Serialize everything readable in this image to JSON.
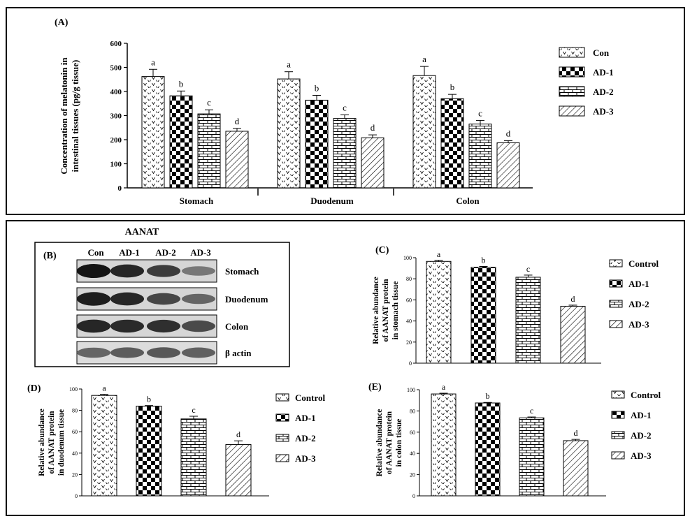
{
  "panel_labels": {
    "a": "(A)",
    "b": "(B)",
    "c": "(C)",
    "d": "(D)",
    "e": "(E)"
  },
  "blot": {
    "title": "AANAT",
    "lanes": [
      "Con",
      "AD-1",
      "AD-2",
      "AD-3"
    ],
    "rows": [
      "Stomach",
      "Duodenum",
      "Colon",
      "β actin"
    ],
    "band_intensity": [
      [
        1.0,
        0.9,
        0.78,
        0.45
      ],
      [
        0.95,
        0.9,
        0.72,
        0.55
      ],
      [
        0.9,
        0.88,
        0.85,
        0.7
      ],
      [
        0.55,
        0.6,
        0.62,
        0.58
      ]
    ]
  },
  "chart_data": [
    {
      "id": "A",
      "type": "bar",
      "ylabel": "Concentration of melatonin in intestinal tissues (pg/g tissue)",
      "ylim": [
        0,
        600
      ],
      "yticks": [
        0,
        100,
        200,
        300,
        400,
        500,
        600
      ],
      "categories": [
        "Stomach",
        "Duodenum",
        "Colon"
      ],
      "series": [
        {
          "name": "Con",
          "values": [
            462,
            452,
            466
          ],
          "errors": [
            30,
            30,
            38
          ],
          "letters": [
            "a",
            "a",
            "a"
          ]
        },
        {
          "name": "AD-1",
          "values": [
            382,
            364,
            370
          ],
          "errors": [
            20,
            20,
            18
          ],
          "letters": [
            "b",
            "b",
            "b"
          ]
        },
        {
          "name": "AD-2",
          "values": [
            307,
            288,
            265
          ],
          "errors": [
            17,
            15,
            15
          ],
          "letters": [
            "c",
            "c",
            "c"
          ]
        },
        {
          "name": "AD-3",
          "values": [
            235,
            208,
            187
          ],
          "errors": [
            12,
            12,
            9
          ],
          "letters": [
            "d",
            "d",
            "d"
          ]
        }
      ],
      "legend": "right"
    },
    {
      "id": "C",
      "type": "bar",
      "ylabel": "Relative abundance of AANAT protein in stomach tissue",
      "ylim": [
        0,
        100
      ],
      "yticks": [
        0,
        20,
        40,
        60,
        80,
        100
      ],
      "categories": [
        "Control",
        "AD-1",
        "AD-2",
        "AD-3"
      ],
      "values": [
        96.5,
        91,
        81.5,
        54
      ],
      "errors": [
        1,
        0.7,
        2,
        1
      ],
      "letters": [
        "a",
        "b",
        "c",
        "d"
      ],
      "legend": "right"
    },
    {
      "id": "D",
      "type": "bar",
      "ylabel": "Relative abundance of AANAT protein in duodenum tissue",
      "ylim": [
        0,
        100
      ],
      "yticks": [
        0,
        20,
        40,
        60,
        80,
        100
      ],
      "categories": [
        "Control",
        "AD-1",
        "AD-2",
        "AD-3"
      ],
      "values": [
        94,
        84,
        72,
        48
      ],
      "errors": [
        1,
        0.5,
        2.5,
        3.5
      ],
      "letters": [
        "a",
        "b",
        "c",
        "d"
      ],
      "legend": "right"
    },
    {
      "id": "E",
      "type": "bar",
      "ylabel": "Relative abundance of AANAT protein in colon tissue",
      "ylim": [
        0,
        100
      ],
      "yticks": [
        0,
        20,
        40,
        60,
        80,
        100
      ],
      "categories": [
        "Control",
        "AD-1",
        "AD-2",
        "AD-3"
      ],
      "values": [
        96,
        87.5,
        73.5,
        52
      ],
      "errors": [
        0.7,
        0.5,
        0.8,
        1.2
      ],
      "letters": [
        "a",
        "b",
        "c",
        "d"
      ],
      "legend": "right"
    }
  ]
}
